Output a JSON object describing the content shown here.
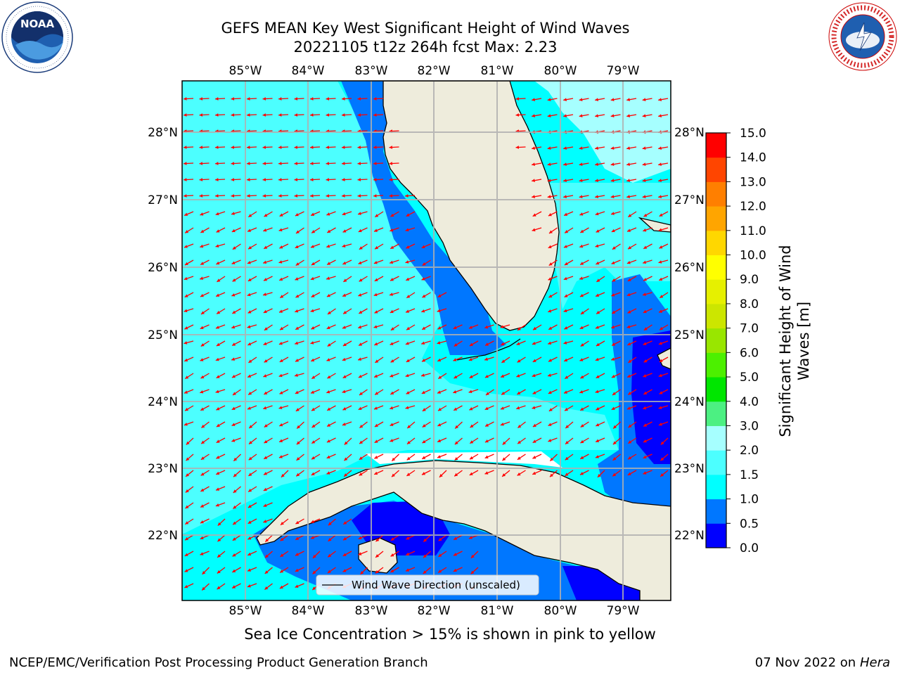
{
  "title": {
    "line1": "GEFS MEAN Key West Significant Height of Wind Waves",
    "line2": "20221105 t12z 264h fcst   Max: 2.23"
  },
  "map": {
    "lon_labels": [
      "85°W",
      "84°W",
      "83°W",
      "82°W",
      "81°W",
      "80°W",
      "79°W"
    ],
    "lat_labels": [
      "28°N",
      "27°N",
      "26°N",
      "25°N",
      "24°N",
      "23°N",
      "22°N"
    ],
    "legend_label": "Wind Wave Direction (unscaled)",
    "arrow_color": "#ff0000",
    "land_color": "#eeecdc"
  },
  "colorbar": {
    "title_line1": "Significant Height of Wind",
    "title_line2": "Waves [m]",
    "ticks": [
      "0.0",
      "0.5",
      "1.0",
      "1.5",
      "2.0",
      "3.0",
      "4.0",
      "5.0",
      "6.0",
      "7.0",
      "8.0",
      "9.0",
      "10.0",
      "11.0",
      "12.0",
      "13.0",
      "14.0",
      "15.0"
    ],
    "colors": [
      "#0000ff",
      "#0077ff",
      "#00ffff",
      "#4cffff",
      "#a6ffff",
      "#4cf082",
      "#00e600",
      "#4cf000",
      "#99e600",
      "#cce600",
      "#e6f000",
      "#ffff00",
      "#ffd700",
      "#ffa500",
      "#ff7f00",
      "#ff4500",
      "#ff0000"
    ]
  },
  "subtitle": "Sea Ice Concentration > 15% is shown in pink to yellow",
  "footer": {
    "left": "NCEP/EMC/Verification Post Processing Product Generation Branch",
    "date": "07 Nov 2022 on",
    "machine": "Hera"
  },
  "logos": {
    "noaa": "NOAA",
    "nws": "NATIONAL WEATHER SERVICE"
  }
}
